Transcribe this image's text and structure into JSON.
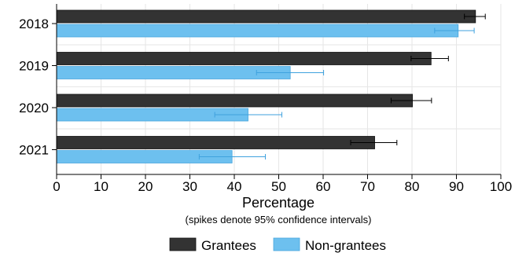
{
  "chart_data": {
    "type": "bar",
    "orientation": "horizontal",
    "categories": [
      "2018",
      "2019",
      "2020",
      "2021"
    ],
    "series": [
      {
        "name": "Grantees",
        "color": "#333333",
        "values": [
          94.3,
          84.3,
          80.1,
          71.6
        ],
        "ci_low": [
          91.8,
          79.8,
          75.3,
          66.2
        ],
        "ci_high": [
          96.5,
          88.2,
          84.4,
          76.6
        ]
      },
      {
        "name": "Non-grantees",
        "color": "#6dc0ef",
        "values": [
          90.4,
          52.6,
          43.1,
          39.5
        ],
        "ci_low": [
          85.1,
          45.0,
          35.6,
          32.1
        ],
        "ci_high": [
          94.0,
          60.1,
          50.7,
          47.0
        ]
      }
    ],
    "xlabel": "Percentage",
    "note": "(spikes denote 95% confidence intervals)",
    "xlim": [
      0,
      100
    ],
    "xticks": [
      "0",
      "10",
      "20",
      "30",
      "40",
      "50",
      "60",
      "70",
      "80",
      "90",
      "100"
    ],
    "grid": true,
    "legend_position": "bottom"
  }
}
